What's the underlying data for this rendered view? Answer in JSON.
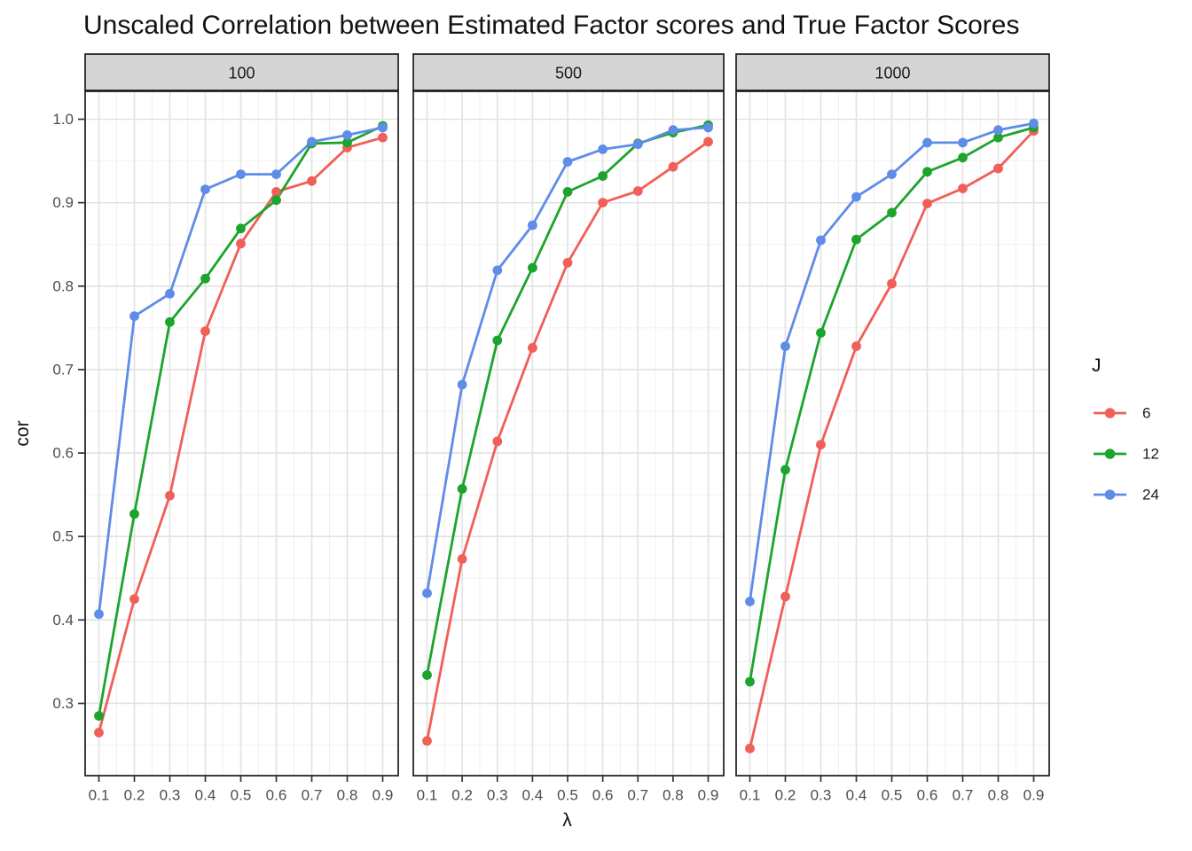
{
  "title": "Unscaled Correlation between Estimated Factor scores and True Factor Scores",
  "axes": {
    "x_label": "λ",
    "y_label": "cor",
    "x_tick_labels": [
      "0.1",
      "0.2",
      "0.3",
      "0.4",
      "0.5",
      "0.6",
      "0.7",
      "0.8",
      "0.9"
    ],
    "y_tick_labels": [
      "1.0",
      "0.9",
      "0.8",
      "0.7",
      "0.6",
      "0.5",
      "0.4",
      "0.3"
    ]
  },
  "legend": {
    "title": "J",
    "entries": [
      {
        "label": "6",
        "color": "#F05F58"
      },
      {
        "label": "12",
        "color": "#1CA42D"
      },
      {
        "label": "24",
        "color": "#5F8CE8"
      }
    ]
  },
  "colors": {
    "series_6": "#F05F58",
    "series_12": "#1CA42D",
    "series_24": "#5F8CE8",
    "strip_fill": "#D5D5D5",
    "panel_border": "#1A1A1A",
    "grid_major": "#E2E2E2",
    "grid_minor": "#F0F0F0",
    "axis_text": "#4D4D4D"
  },
  "chart_data": {
    "type": "line",
    "title": "Unscaled Correlation between Estimated Factor scores and True Factor Scores",
    "xlabel": "λ",
    "ylabel": "cor",
    "facet_labels": [
      "100",
      "500",
      "1000"
    ],
    "x": [
      0.1,
      0.2,
      0.3,
      0.4,
      0.5,
      0.6,
      0.7,
      0.8,
      0.9
    ],
    "xlim": [
      0.06,
      0.94
    ],
    "ylim": [
      0.213,
      1.033
    ],
    "y_major_ticks": [
      0.3,
      0.4,
      0.5,
      0.6,
      0.7,
      0.8,
      0.9,
      1.0
    ],
    "y_minor_ticks": [
      0.25,
      0.35,
      0.45,
      0.55,
      0.65,
      0.75,
      0.85,
      0.95
    ],
    "x_minor_ticks": [
      0.15,
      0.25,
      0.35,
      0.45,
      0.55,
      0.65,
      0.75,
      0.85
    ],
    "grid": "on",
    "legend_title": "J",
    "legend_position": "right",
    "facets": [
      {
        "name": "100",
        "series": [
          {
            "name": "6",
            "color": "#F05F58",
            "values": [
              0.265,
              0.425,
              0.549,
              0.746,
              0.851,
              0.913,
              0.926,
              0.966,
              0.978
            ]
          },
          {
            "name": "12",
            "color": "#1CA42D",
            "values": [
              0.285,
              0.527,
              0.757,
              0.809,
              0.869,
              0.903,
              0.971,
              0.972,
              0.992
            ]
          },
          {
            "name": "24",
            "color": "#5F8CE8",
            "values": [
              0.407,
              0.764,
              0.791,
              0.916,
              0.934,
              0.934,
              0.973,
              0.981,
              0.99
            ]
          }
        ]
      },
      {
        "name": "500",
        "series": [
          {
            "name": "6",
            "color": "#F05F58",
            "values": [
              0.255,
              0.473,
              0.614,
              0.726,
              0.828,
              0.9,
              0.914,
              0.943,
              0.973
            ]
          },
          {
            "name": "12",
            "color": "#1CA42D",
            "values": [
              0.334,
              0.557,
              0.735,
              0.822,
              0.913,
              0.932,
              0.971,
              0.984,
              0.993
            ]
          },
          {
            "name": "24",
            "color": "#5F8CE8",
            "values": [
              0.432,
              0.682,
              0.819,
              0.873,
              0.949,
              0.964,
              0.97,
              0.987,
              0.99
            ]
          }
        ]
      },
      {
        "name": "1000",
        "series": [
          {
            "name": "6",
            "color": "#F05F58",
            "values": [
              0.246,
              0.428,
              0.61,
              0.728,
              0.803,
              0.899,
              0.917,
              0.941,
              0.986
            ]
          },
          {
            "name": "12",
            "color": "#1CA42D",
            "values": [
              0.326,
              0.58,
              0.744,
              0.856,
              0.888,
              0.937,
              0.954,
              0.978,
              0.99
            ]
          },
          {
            "name": "24",
            "color": "#5F8CE8",
            "values": [
              0.422,
              0.728,
              0.855,
              0.907,
              0.934,
              0.972,
              0.972,
              0.987,
              0.995
            ]
          }
        ]
      }
    ]
  }
}
